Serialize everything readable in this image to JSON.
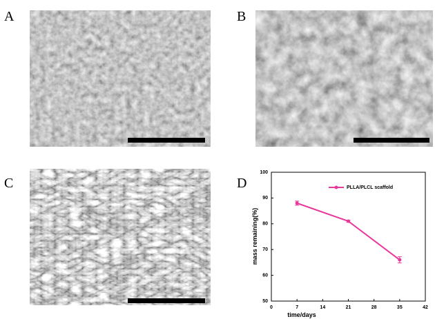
{
  "panels": [
    {
      "label": "A"
    },
    {
      "label": "B"
    },
    {
      "label": "C"
    },
    {
      "label": "D"
    }
  ],
  "chart_data": {
    "type": "line",
    "x": [
      7,
      21,
      35
    ],
    "series": [
      {
        "name": "PLLA/PLCL scaffold",
        "color": "#e8399b",
        "values": [
          88,
          81,
          66
        ],
        "errors": [
          0.8,
          0.4,
          1.2
        ]
      }
    ],
    "xlabel": "time/days",
    "ylabel": "mass remaining(%)",
    "xlim": [
      0,
      42
    ],
    "xticks": [
      0,
      7,
      14,
      21,
      28,
      35,
      42
    ],
    "ylim": [
      50,
      100
    ],
    "yticks": [
      50,
      60,
      70,
      80,
      90,
      100
    ],
    "legend": "upper right"
  }
}
